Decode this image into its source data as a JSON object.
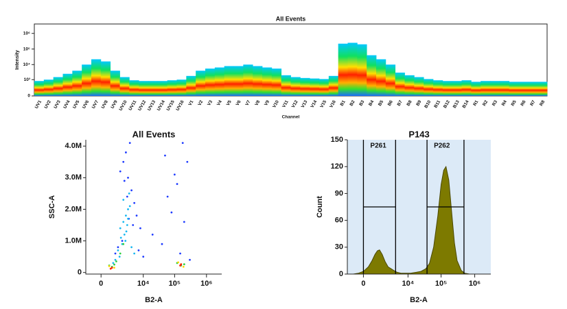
{
  "chart_data": [
    {
      "type": "spectrum",
      "title": "All Events",
      "y_label": "Intensity",
      "x_label": "Channel",
      "yscale": "biexponential",
      "categories": [
        "UV1",
        "UV2",
        "UV3",
        "UV4",
        "UV5",
        "UV6",
        "UV7",
        "UV8",
        "UV9",
        "UV10",
        "UV11",
        "UV12",
        "UV13",
        "UV14",
        "UV15",
        "UV16",
        "V1",
        "V2",
        "V3",
        "V4",
        "V5",
        "V6",
        "V7",
        "V8",
        "V9",
        "V10",
        "V11",
        "V12",
        "V13",
        "V14",
        "V15",
        "V16",
        "B1",
        "B2",
        "B3",
        "B4",
        "B5",
        "B6",
        "B7",
        "B8",
        "B9",
        "B10",
        "B11",
        "B12",
        "B13",
        "B14",
        "R1",
        "R2",
        "R3",
        "R4",
        "R5",
        "R6",
        "R7",
        "R8"
      ],
      "values": [
        800,
        1000,
        1500,
        2500,
        4000,
        10000,
        22000,
        16000,
        4000,
        1500,
        900,
        800,
        800,
        800,
        900,
        1000,
        1800,
        4000,
        5500,
        6500,
        8000,
        8000,
        10000,
        8000,
        6500,
        5500,
        2000,
        1500,
        1300,
        1200,
        1100,
        1800,
        220000,
        250000,
        200000,
        40000,
        22000,
        10000,
        3000,
        2000,
        1500,
        1100,
        900,
        800,
        800,
        900,
        700,
        800,
        800,
        800,
        700,
        700,
        700,
        700
      ],
      "ylim": [
        0,
        4000000
      ],
      "yticks": [
        0,
        {
          "value": 1000,
          "label": "10³"
        },
        {
          "value": 10000,
          "label": "10⁴"
        },
        {
          "value": 100000,
          "label": "10⁵"
        },
        {
          "value": 1000000,
          "label": "10⁶"
        }
      ]
    },
    {
      "type": "scatter",
      "title": "All Events",
      "x_label": "B2-A",
      "y_label": "SSC-A",
      "xscale": "biexponential",
      "xlim": [
        -1000,
        3000000
      ],
      "ylim": [
        -50000,
        4200000
      ],
      "xticks": [
        0,
        {
          "value": 10000,
          "label": "10⁴"
        },
        {
          "value": 100000,
          "label": "10⁵"
        },
        {
          "value": 1000000,
          "label": "10⁶"
        }
      ],
      "yticks": [
        0,
        {
          "value": 1000000,
          "label": "1.0M"
        },
        {
          "value": 2000000,
          "label": "2.0M"
        },
        {
          "value": 3000000,
          "label": "3.0M"
        },
        {
          "value": 4000000,
          "label": "4.0M"
        }
      ],
      "series": [
        {
          "color": "#1f3cff",
          "x": [
            2000,
            3000,
            4000,
            2500,
            5000,
            6000,
            8000,
            3500,
            1500,
            20000,
            40000,
            60000,
            100000,
            150000,
            200000,
            300000,
            120000,
            80000,
            2800,
            3200,
            4500,
            7000,
            10000,
            2200,
            1800,
            1200,
            900,
            50000,
            250000,
            180000
          ],
          "y": [
            3500000,
            3000000,
            2600000,
            3800000,
            2200000,
            1800000,
            1400000,
            4100000,
            3200000,
            1200000,
            900000,
            2400000,
            3100000,
            600000,
            1600000,
            400000,
            2800000,
            1900000,
            2400000,
            1700000,
            1500000,
            700000,
            500000,
            2900000,
            1000000,
            800000,
            600000,
            3700000,
            3500000,
            4100000
          ]
        },
        {
          "color": "#18b8f0",
          "x": [
            1500,
            2000,
            2500,
            3000,
            2200,
            1800,
            2800,
            3500,
            1200,
            1600,
            2400,
            3000,
            2000,
            2600,
            1400,
            900,
            700,
            4000,
            5000,
            3300
          ],
          "y": [
            1400000,
            1600000,
            1800000,
            2000000,
            1200000,
            900000,
            1500000,
            2100000,
            700000,
            1100000,
            1000000,
            1700000,
            2300000,
            1300000,
            500000,
            400000,
            300000,
            800000,
            600000,
            2500000
          ]
        },
        {
          "color": "#30d040",
          "x": [
            800,
            600,
            1000,
            400,
            120000,
            160000,
            200000,
            1500,
            2000
          ],
          "y": [
            250000,
            180000,
            350000,
            220000,
            300000,
            220000,
            260000,
            600000,
            900000
          ]
        },
        {
          "color": "#ffd800",
          "x": [
            400,
            800,
            130000,
            190000
          ],
          "y": [
            200000,
            150000,
            320000,
            180000
          ]
        },
        {
          "color": "#ff2000",
          "x": [
            500,
            600,
            150000,
            160000
          ],
          "y": [
            120000,
            150000,
            220000,
            260000
          ]
        }
      ]
    },
    {
      "type": "histogram",
      "title": "P143",
      "x_label": "B2-A",
      "y_label": "Count",
      "xscale": "biexponential",
      "color": "#7d7a00",
      "background": "#dceaf7",
      "xlim": [
        -1000,
        3000000
      ],
      "ylim": [
        0,
        150
      ],
      "xticks": [
        0,
        {
          "value": 10000,
          "label": "10⁴"
        },
        {
          "value": 100000,
          "label": "10⁵"
        },
        {
          "value": 1000000,
          "label": "10⁶"
        }
      ],
      "yticks": [
        0,
        30,
        60,
        90,
        120,
        150
      ],
      "x": [
        -500,
        -200,
        0,
        200,
        400,
        600,
        800,
        1000,
        1300,
        1700,
        2200,
        2800,
        3500,
        4500,
        6000,
        8000,
        12000,
        18000,
        25000,
        35000,
        45000,
        60000,
        80000,
        100000,
        120000,
        140000,
        170000,
        200000,
        250000,
        300000,
        400000,
        500000,
        700000
      ],
      "values": [
        0,
        1,
        3,
        8,
        15,
        22,
        26,
        27,
        22,
        14,
        8,
        6,
        4,
        2,
        1,
        1,
        1,
        2,
        3,
        6,
        12,
        30,
        65,
        100,
        116,
        120,
        105,
        75,
        35,
        15,
        4,
        1,
        0
      ],
      "gates": [
        {
          "name": "P261",
          "range": [
            0,
            4000
          ],
          "level": 75
        },
        {
          "name": "P262",
          "range": [
            38000,
            480000
          ],
          "level": 75
        }
      ]
    }
  ]
}
